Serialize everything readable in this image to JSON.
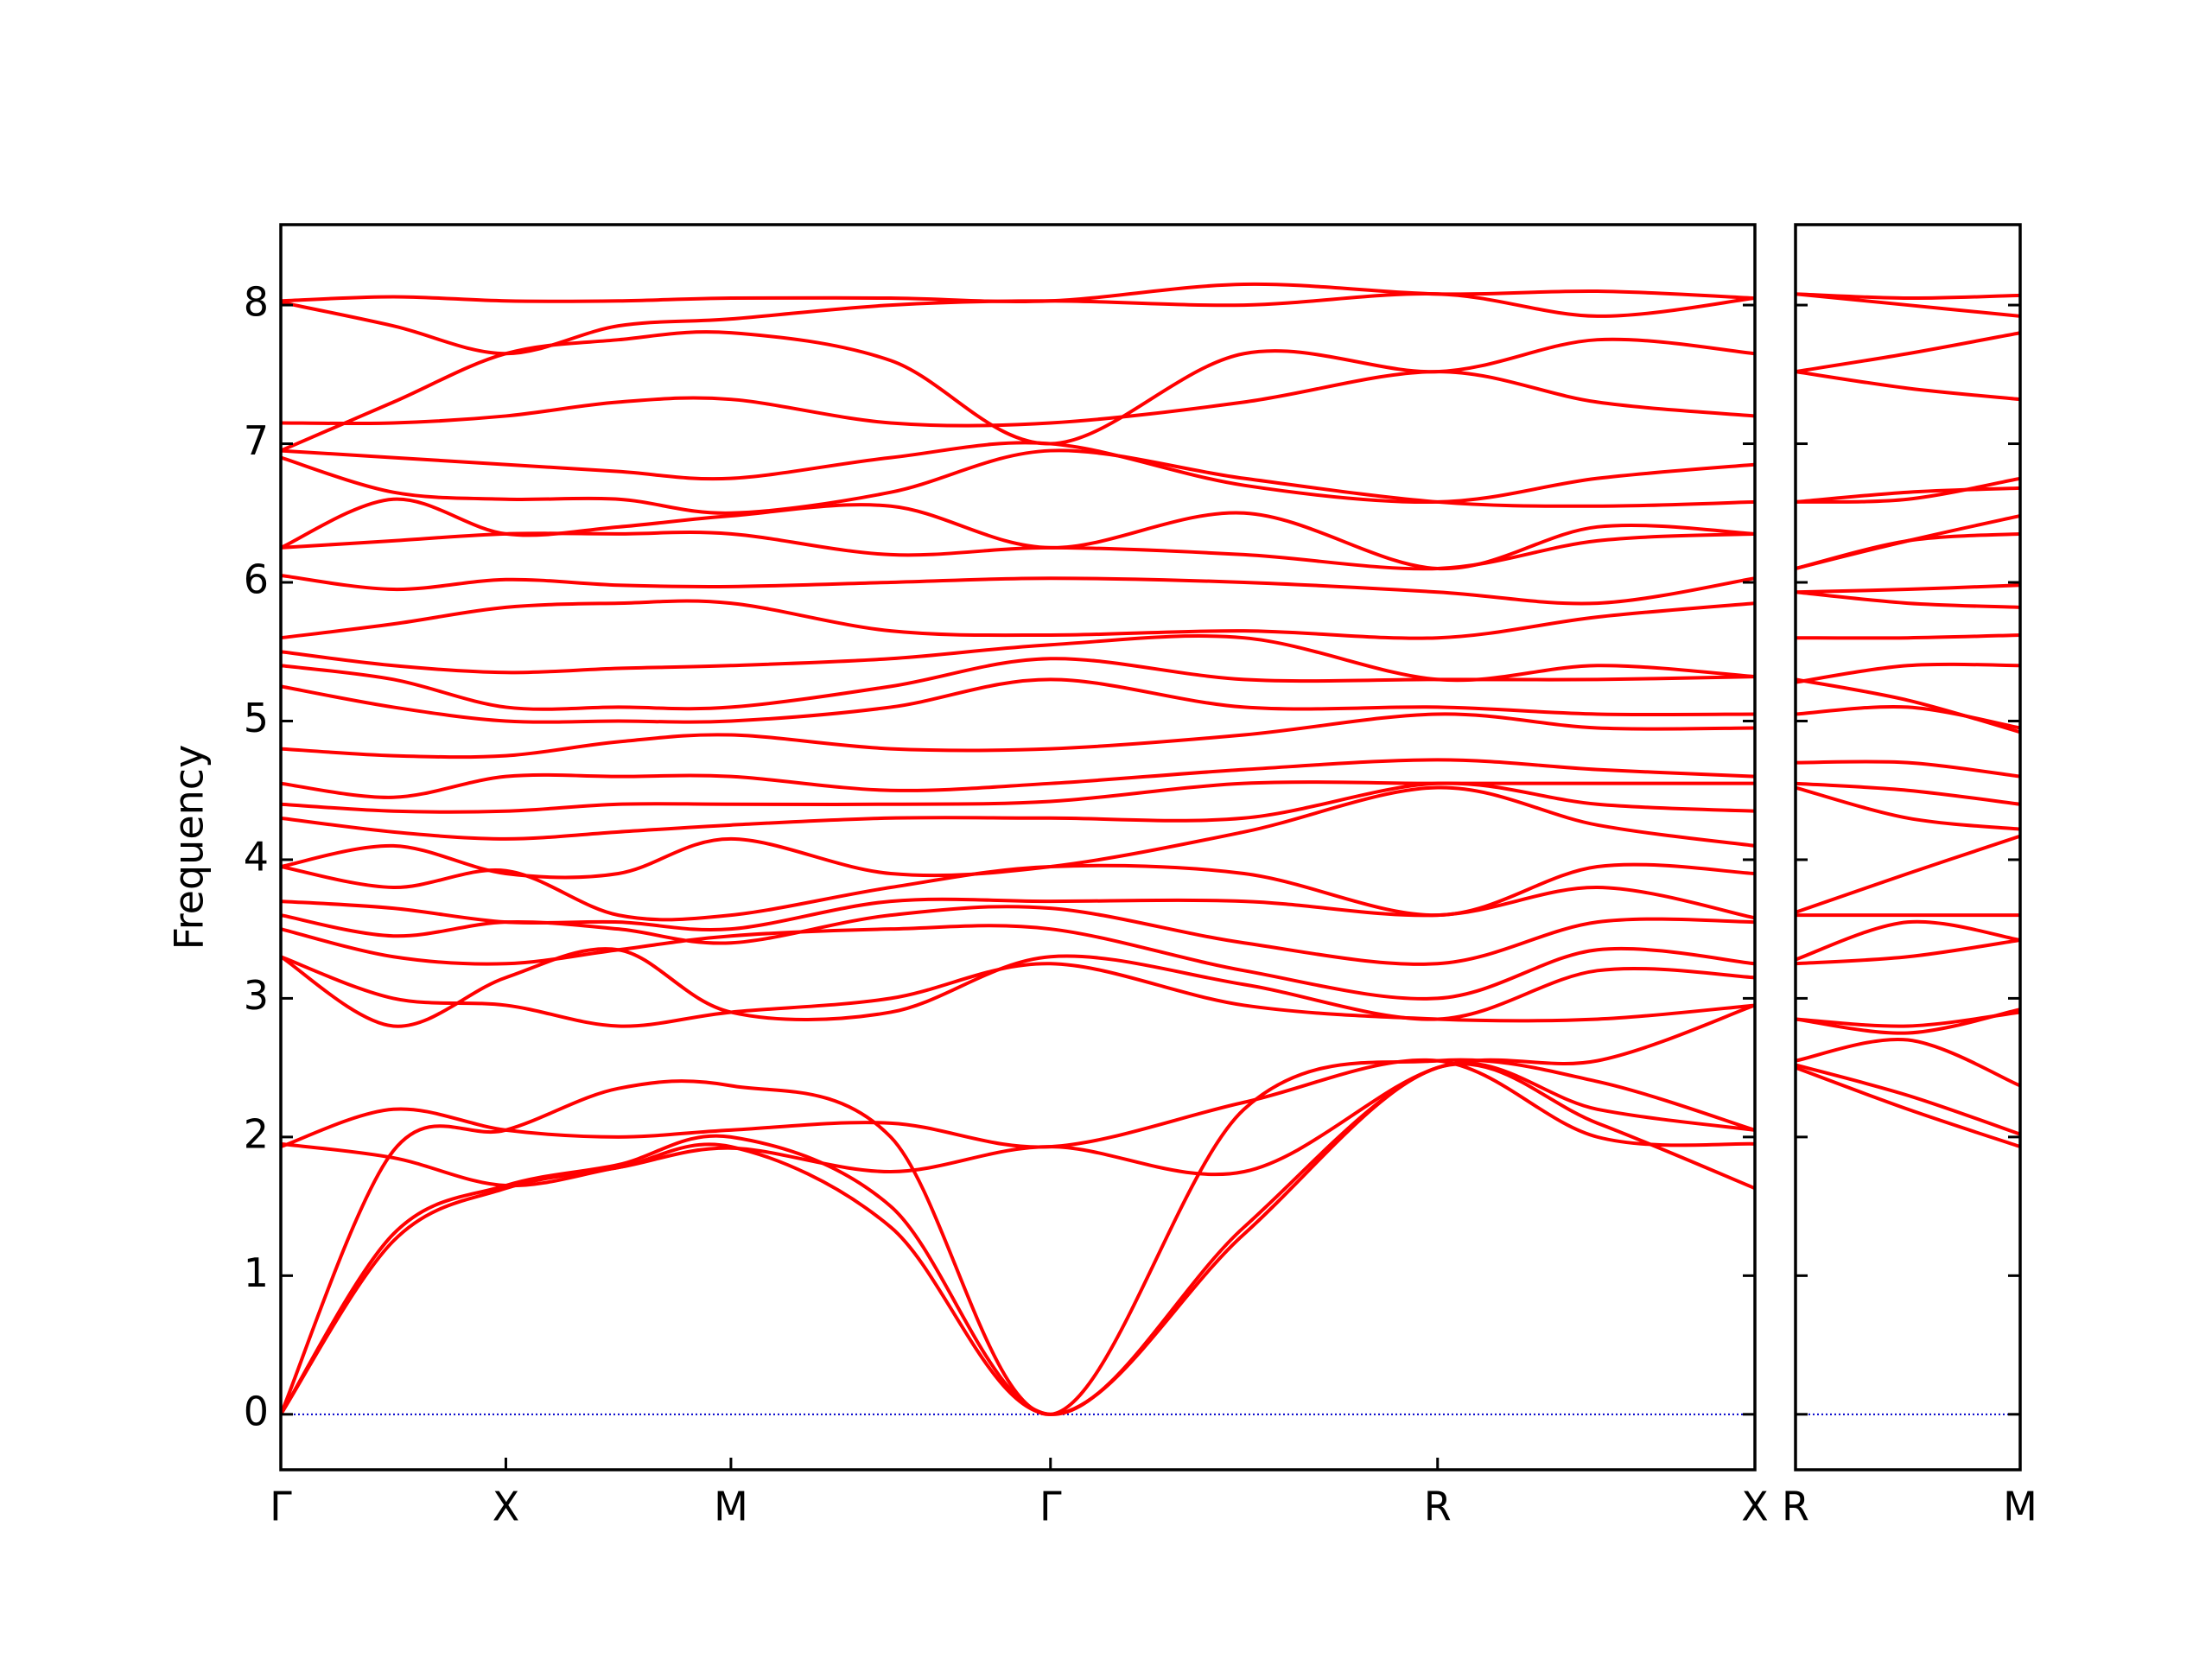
{
  "chart_data": [
    {
      "type": "line",
      "y_label": "Frequency",
      "color": "#ff0000",
      "x": [
        0,
        0.5,
        1,
        1.5,
        2,
        2.71,
        3.42,
        4.28,
        5.14,
        5.85,
        6.55
      ],
      "xlim": [
        0,
        6.55
      ],
      "xticks": [
        {
          "value": 0,
          "label": "Γ"
        },
        {
          "value": 1,
          "label": "X"
        },
        {
          "value": 2,
          "label": "M"
        },
        {
          "value": 3.42,
          "label": "Γ"
        },
        {
          "value": 5.14,
          "label": "R"
        },
        {
          "value": 6.55,
          "label": "X"
        }
      ],
      "ylim": [
        -0.4,
        8.58
      ],
      "yticks": [
        0,
        1,
        2,
        3,
        4,
        5,
        6,
        7,
        8
      ],
      "show_ytick_labels": true,
      "hline": 0,
      "hline_color": "#0000cc",
      "series": [
        {
          "values": [
            0,
            1.25,
            1.63,
            1.78,
            1.93,
            1.35,
            0,
            1.3,
            2.5,
            2.1,
            1.63
          ]
        },
        {
          "values": [
            0,
            1.3,
            1.65,
            1.8,
            2.0,
            1.5,
            0,
            1.35,
            2.5,
            2.2,
            2.05
          ]
        },
        {
          "values": [
            0,
            1.9,
            2.05,
            2.35,
            2.37,
            2.0,
            0,
            2.2,
            2.55,
            2.4,
            2.05
          ]
        },
        {
          "values": [
            1.95,
            1.85,
            1.65,
            1.78,
            1.92,
            1.75,
            1.93,
            1.75,
            2.5,
            2.55,
            2.95
          ]
        },
        {
          "values": [
            1.93,
            2.2,
            2.05,
            2.0,
            2.05,
            2.1,
            1.93,
            2.25,
            2.55,
            2.0,
            1.95
          ]
        },
        {
          "values": [
            3.3,
            3.0,
            2.95,
            2.8,
            2.9,
            3.0,
            3.25,
            2.95,
            2.85,
            2.85,
            2.95
          ]
        },
        {
          "values": [
            3.3,
            2.8,
            3.15,
            3.35,
            2.9,
            2.9,
            3.3,
            3.1,
            2.85,
            3.2,
            3.15
          ]
        },
        {
          "values": [
            3.5,
            3.3,
            3.25,
            3.35,
            3.45,
            3.5,
            3.5,
            3.2,
            3.0,
            3.35,
            3.25
          ]
        },
        {
          "values": [
            3.6,
            3.45,
            3.55,
            3.5,
            3.4,
            3.6,
            3.65,
            3.4,
            3.25,
            3.55,
            3.55
          ]
        },
        {
          "values": [
            3.7,
            3.65,
            3.55,
            3.55,
            3.5,
            3.7,
            3.7,
            3.7,
            3.6,
            3.8,
            3.58
          ]
        },
        {
          "values": [
            3.95,
            3.8,
            3.92,
            3.6,
            3.6,
            3.8,
            3.95,
            3.9,
            3.6,
            3.95,
            3.9
          ]
        },
        {
          "values": [
            3.95,
            4.1,
            3.9,
            3.9,
            4.15,
            3.9,
            3.95,
            4.2,
            4.52,
            4.25,
            4.1
          ]
        },
        {
          "values": [
            4.3,
            4.2,
            4.15,
            4.2,
            4.25,
            4.3,
            4.3,
            4.3,
            4.55,
            4.4,
            4.35
          ]
        },
        {
          "values": [
            4.4,
            4.35,
            4.35,
            4.4,
            4.4,
            4.4,
            4.42,
            4.55,
            4.55,
            4.55,
            4.55
          ]
        },
        {
          "values": [
            4.55,
            4.45,
            4.6,
            4.6,
            4.6,
            4.5,
            4.55,
            4.65,
            4.72,
            4.65,
            4.6
          ]
        },
        {
          "values": [
            4.8,
            4.75,
            4.75,
            4.85,
            4.9,
            4.8,
            4.8,
            4.9,
            5.05,
            4.95,
            4.95
          ]
        },
        {
          "values": [
            5.25,
            5.1,
            5.0,
            5.0,
            5.0,
            5.1,
            5.3,
            5.1,
            5.1,
            5.05,
            5.05
          ]
        },
        {
          "values": [
            5.4,
            5.3,
            5.1,
            5.1,
            5.1,
            5.25,
            5.45,
            5.3,
            5.3,
            5.3,
            5.32
          ]
        },
        {
          "values": [
            5.5,
            5.4,
            5.35,
            5.38,
            5.4,
            5.45,
            5.55,
            5.6,
            5.3,
            5.4,
            5.32
          ]
        },
        {
          "values": [
            5.6,
            5.7,
            5.82,
            5.85,
            5.85,
            5.65,
            5.62,
            5.65,
            5.6,
            5.75,
            5.85
          ]
        },
        {
          "values": [
            6.05,
            5.95,
            6.02,
            5.98,
            5.97,
            6.0,
            6.03,
            6.0,
            5.93,
            5.85,
            6.03
          ]
        },
        {
          "values": [
            6.25,
            6.3,
            6.35,
            6.35,
            6.35,
            6.2,
            6.25,
            6.2,
            6.1,
            6.3,
            6.35
          ]
        },
        {
          "values": [
            6.25,
            6.6,
            6.35,
            6.4,
            6.48,
            6.55,
            6.25,
            6.5,
            6.1,
            6.4,
            6.35
          ]
        },
        {
          "values": [
            6.9,
            6.65,
            6.6,
            6.6,
            6.5,
            6.65,
            6.95,
            6.75,
            6.58,
            6.55,
            6.58
          ]
        },
        {
          "values": [
            6.95,
            6.9,
            6.85,
            6.8,
            6.75,
            6.9,
            7.0,
            6.7,
            6.58,
            6.75,
            6.85
          ]
        },
        {
          "values": [
            7.15,
            7.15,
            7.2,
            7.3,
            7.32,
            7.15,
            7.15,
            7.3,
            7.52,
            7.3,
            7.2
          ]
        },
        {
          "values": [
            6.95,
            7.3,
            7.65,
            7.75,
            7.8,
            7.6,
            7.0,
            7.65,
            7.52,
            7.75,
            7.65
          ]
        },
        {
          "values": [
            8.02,
            7.85,
            7.65,
            7.85,
            7.9,
            8.0,
            8.03,
            8.0,
            8.08,
            7.92,
            8.05
          ]
        },
        {
          "values": [
            8.03,
            8.06,
            8.03,
            8.03,
            8.05,
            8.05,
            8.03,
            8.15,
            8.08,
            8.1,
            8.05
          ]
        }
      ]
    },
    {
      "type": "line",
      "color": "#ff0000",
      "x": [
        0,
        0.5,
        1
      ],
      "xlim": [
        0,
        1
      ],
      "xticks": [
        {
          "value": 0,
          "label": "R"
        },
        {
          "value": 1,
          "label": "M"
        }
      ],
      "ylim": [
        -0.4,
        8.58
      ],
      "yticks": [
        0,
        1,
        2,
        3,
        4,
        5,
        6,
        7,
        8
      ],
      "show_ytick_labels": false,
      "hline": 0,
      "hline_color": "#0000cc",
      "series": [
        {
          "values": [
            2.5,
            2.2,
            1.93
          ]
        },
        {
          "values": [
            2.52,
            2.3,
            2.02
          ]
        },
        {
          "values": [
            2.55,
            2.7,
            2.37
          ]
        },
        {
          "values": [
            2.85,
            2.8,
            2.9
          ]
        },
        {
          "values": [
            2.85,
            2.75,
            2.92
          ]
        },
        {
          "values": [
            3.25,
            3.3,
            3.42
          ]
        },
        {
          "values": [
            3.6,
            3.6,
            3.6
          ]
        },
        {
          "values": [
            3.28,
            3.55,
            3.42
          ]
        },
        {
          "values": [
            3.62,
            3.9,
            4.17
          ]
        },
        {
          "values": [
            4.52,
            4.3,
            4.22
          ]
        },
        {
          "values": [
            4.55,
            4.5,
            4.4
          ]
        },
        {
          "values": [
            4.7,
            4.7,
            4.6
          ]
        },
        {
          "values": [
            5.05,
            5.1,
            4.95
          ]
        },
        {
          "values": [
            5.3,
            5.15,
            4.92
          ]
        },
        {
          "values": [
            5.28,
            5.4,
            5.4
          ]
        },
        {
          "values": [
            5.6,
            5.6,
            5.62
          ]
        },
        {
          "values": [
            5.93,
            5.95,
            5.98
          ]
        },
        {
          "values": [
            5.93,
            5.85,
            5.82
          ]
        },
        {
          "values": [
            6.1,
            6.3,
            6.35
          ]
        },
        {
          "values": [
            6.1,
            6.3,
            6.48
          ]
        },
        {
          "values": [
            6.58,
            6.65,
            6.68
          ]
        },
        {
          "values": [
            6.58,
            6.6,
            6.75
          ]
        },
        {
          "values": [
            7.52,
            7.4,
            7.32
          ]
        },
        {
          "values": [
            7.52,
            7.65,
            7.8
          ]
        },
        {
          "values": [
            8.08,
            8.0,
            7.92
          ]
        },
        {
          "values": [
            8.08,
            8.05,
            8.07
          ]
        }
      ]
    }
  ]
}
